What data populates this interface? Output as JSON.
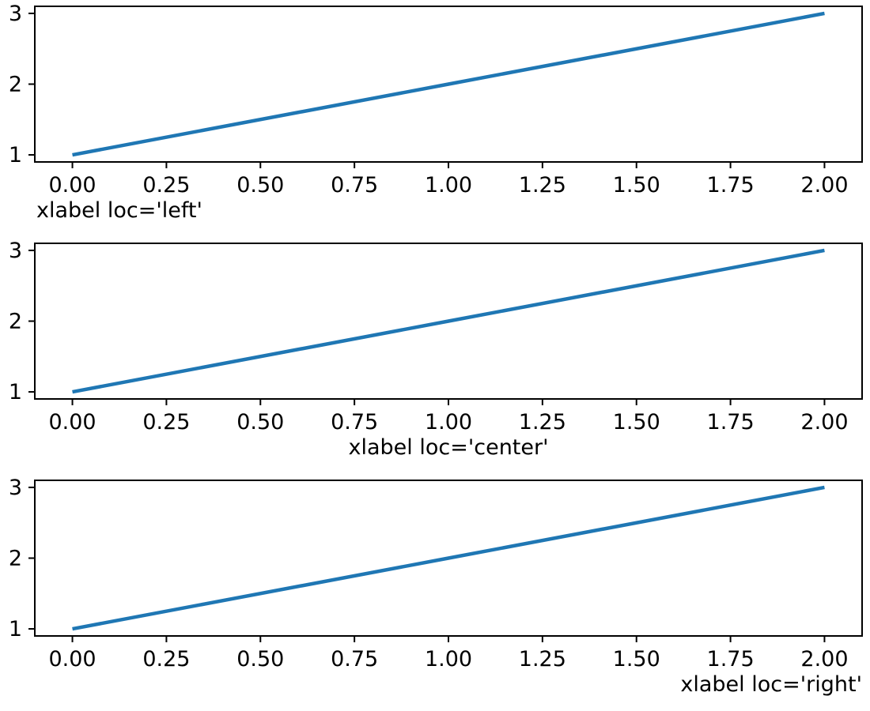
{
  "colors": {
    "line": "#1f77b4",
    "axes": "#000000",
    "background": "#ffffff"
  },
  "chart_data": [
    {
      "type": "line",
      "x": [
        0,
        1,
        2
      ],
      "y": [
        1,
        2,
        3
      ],
      "line_color": "#1f77b4",
      "xlabel": "xlabel loc='left'",
      "xlabel_loc": "left",
      "title": "",
      "ylabel": "",
      "xlim": [
        -0.1,
        2.1
      ],
      "ylim": [
        0.9,
        3.1
      ],
      "xtick_values": [
        0.0,
        0.25,
        0.5,
        0.75,
        1.0,
        1.25,
        1.5,
        1.75,
        2.0
      ],
      "xtick_labels": [
        "0.00",
        "0.25",
        "0.50",
        "0.75",
        "1.00",
        "1.25",
        "1.50",
        "1.75",
        "2.00"
      ],
      "ytick_values": [
        1,
        2,
        3
      ],
      "ytick_labels": [
        "1",
        "2",
        "3"
      ],
      "grid": false,
      "legend": false
    },
    {
      "type": "line",
      "x": [
        0,
        1,
        2
      ],
      "y": [
        1,
        2,
        3
      ],
      "line_color": "#1f77b4",
      "xlabel": "xlabel loc='center'",
      "xlabel_loc": "center",
      "title": "",
      "ylabel": "",
      "xlim": [
        -0.1,
        2.1
      ],
      "ylim": [
        0.9,
        3.1
      ],
      "xtick_values": [
        0.0,
        0.25,
        0.5,
        0.75,
        1.0,
        1.25,
        1.5,
        1.75,
        2.0
      ],
      "xtick_labels": [
        "0.00",
        "0.25",
        "0.50",
        "0.75",
        "1.00",
        "1.25",
        "1.50",
        "1.75",
        "2.00"
      ],
      "ytick_values": [
        1,
        2,
        3
      ],
      "ytick_labels": [
        "1",
        "2",
        "3"
      ],
      "grid": false,
      "legend": false
    },
    {
      "type": "line",
      "x": [
        0,
        1,
        2
      ],
      "y": [
        1,
        2,
        3
      ],
      "line_color": "#1f77b4",
      "xlabel": "xlabel loc='right'",
      "xlabel_loc": "right",
      "title": "",
      "ylabel": "",
      "xlim": [
        -0.1,
        2.1
      ],
      "ylim": [
        0.9,
        3.1
      ],
      "xtick_values": [
        0.0,
        0.25,
        0.5,
        0.75,
        1.0,
        1.25,
        1.5,
        1.75,
        2.0
      ],
      "xtick_labels": [
        "0.00",
        "0.25",
        "0.50",
        "0.75",
        "1.00",
        "1.25",
        "1.50",
        "1.75",
        "2.00"
      ],
      "ytick_values": [
        1,
        2,
        3
      ],
      "ytick_labels": [
        "1",
        "2",
        "3"
      ],
      "grid": false,
      "legend": false
    }
  ]
}
